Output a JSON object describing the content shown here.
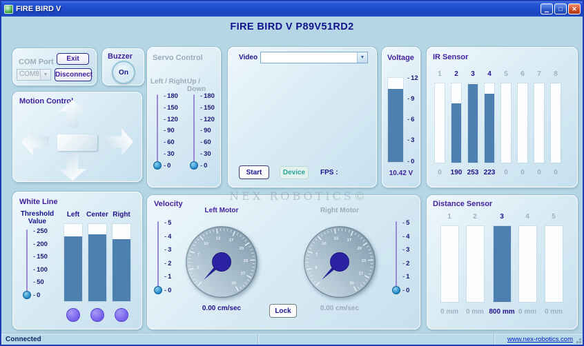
{
  "window": {
    "title": "FIRE BIRD V",
    "heading": "FIRE BIRD V P89V51RD2",
    "watermark": "NEX ROBOTICS©",
    "status_left": "Connected",
    "status_right": "www.nex-robotics.com"
  },
  "com_port": {
    "title": "COM Port",
    "exit_label": "Exit",
    "port_value": "COM8",
    "disconnect_label": "Disconnect"
  },
  "buzzer": {
    "title": "Buzzer",
    "on_label": "On"
  },
  "motion": {
    "title": "Motion Control"
  },
  "servo": {
    "title": "Servo Control",
    "left_right_label": "Left / Right",
    "up_down_label": "Up / Down",
    "ticks": [
      "180",
      "150",
      "120",
      "90",
      "60",
      "30",
      "0"
    ],
    "left_right_value": 0,
    "up_down_value": 0
  },
  "video": {
    "title": "Video",
    "device_value": "",
    "start_label": "Start",
    "device_label": "Device",
    "fps_label": "FPS :"
  },
  "voltage": {
    "title": "Voltage",
    "ticks": [
      "12",
      "9",
      "6",
      "3",
      "0"
    ],
    "value": 10.42,
    "max": 12,
    "value_label": "10.42 V"
  },
  "ir_sensor": {
    "title": "IR Sensor",
    "max": 255,
    "channels": [
      {
        "label": "1",
        "value": 0,
        "active": false
      },
      {
        "label": "2",
        "value": 190,
        "active": true
      },
      {
        "label": "3",
        "value": 253,
        "active": true
      },
      {
        "label": "4",
        "value": 223,
        "active": true
      },
      {
        "label": "5",
        "value": 0,
        "active": false
      },
      {
        "label": "6",
        "value": 0,
        "active": false
      },
      {
        "label": "7",
        "value": 0,
        "active": false
      },
      {
        "label": "8",
        "value": 0,
        "active": false
      }
    ]
  },
  "white_line": {
    "title": "White Line",
    "threshold_label_1": "Threshold",
    "threshold_label_2": "Value",
    "ticks": [
      "250",
      "200",
      "150",
      "100",
      "50",
      "0"
    ],
    "threshold_value": 0,
    "max": 255,
    "sensors": [
      {
        "label": "Left",
        "value": 215
      },
      {
        "label": "Center",
        "value": 222
      },
      {
        "label": "Right",
        "value": 205
      }
    ]
  },
  "velocity": {
    "title": "Velocity",
    "ticks": [
      "5",
      "4",
      "3",
      "2",
      "1",
      "0"
    ],
    "left_label": "Left Motor",
    "right_label": "Right Motor",
    "left_value_label": "0.00 cm/sec",
    "right_value_label": "0.00 cm/sec",
    "lock_label": "Lock",
    "gauge": {
      "min": 0,
      "max": 30,
      "labels": [
        "3",
        "7",
        "10",
        "13",
        "17",
        "20",
        "23",
        "27",
        "30"
      ],
      "needle_value": 0
    }
  },
  "distance_sensor": {
    "title": "Distance Sensor",
    "max": 800,
    "channels": [
      {
        "label": "1",
        "value": 0,
        "value_label": "0 mm",
        "active": false
      },
      {
        "label": "2",
        "value": 0,
        "value_label": "0 mm",
        "active": false
      },
      {
        "label": "3",
        "value": 800,
        "value_label": "800 mm",
        "active": true
      },
      {
        "label": "4",
        "value": 0,
        "value_label": "0 mm",
        "active": false
      },
      {
        "label": "5",
        "value": 0,
        "value_label": "0 mm",
        "active": false
      }
    ]
  },
  "colors": {
    "bar_fill": "#4d80ae",
    "led": "#7b68ee",
    "accent_navy": "#17128e",
    "title_purple": "#43219e"
  }
}
